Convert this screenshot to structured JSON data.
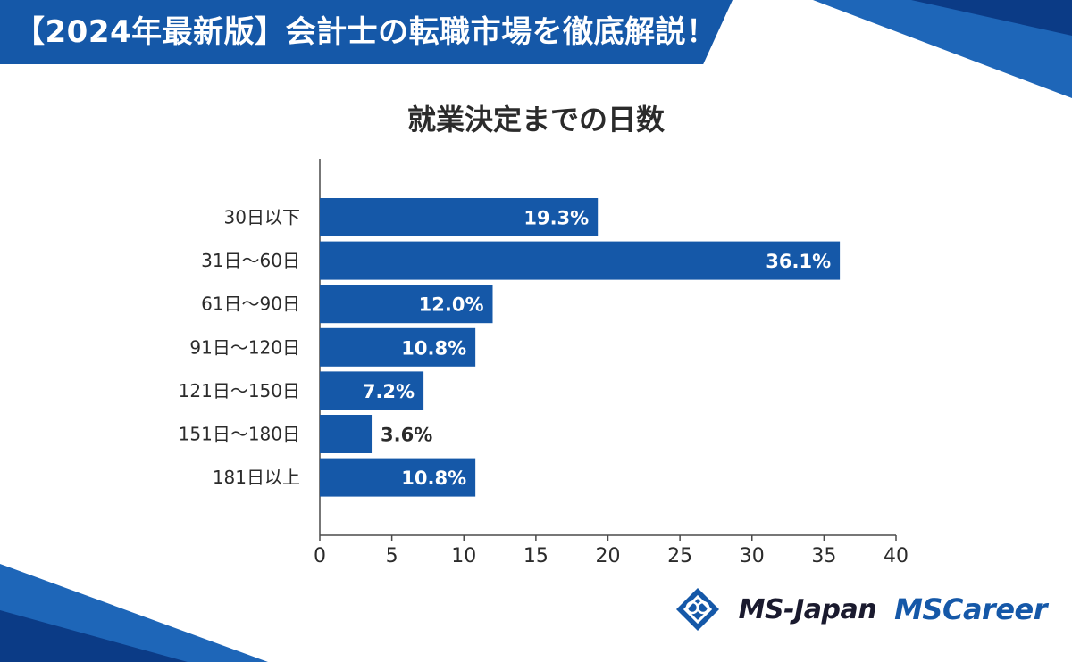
{
  "header": {
    "title": "【2024年最新版】会計士の転職市場を徹底解説！"
  },
  "colors": {
    "bar": "#1558a8",
    "accent": "#1558a8",
    "text": "#2b2b2b"
  },
  "brand": {
    "logo1": "MS-Japan",
    "logo2": "MSCareer"
  },
  "chart_data": {
    "type": "bar",
    "orientation": "horizontal",
    "title": "就業決定までの日数",
    "categories": [
      "30日以下",
      "31日～60日",
      "61日～90日",
      "91日～120日",
      "121日～150日",
      "151日～180日",
      "181日以上"
    ],
    "values": [
      19.3,
      36.1,
      12.0,
      10.8,
      7.2,
      3.6,
      10.8
    ],
    "value_labels": [
      "19.3%",
      "36.1%",
      "12.0%",
      "10.8%",
      "7.2%",
      "3.6%",
      "10.8%"
    ],
    "xlim": [
      0,
      40
    ],
    "xticks": [
      "0",
      "5",
      "10",
      "15",
      "20",
      "25",
      "30",
      "35",
      "40"
    ],
    "xlabel": "",
    "ylabel": "",
    "grid": false
  }
}
